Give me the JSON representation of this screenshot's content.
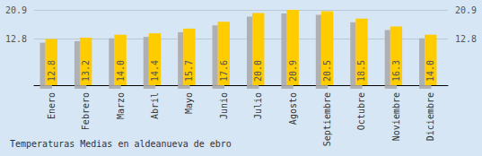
{
  "chart_data": {
    "type": "bar",
    "title": "Temperaturas Medias en aldeanueva de ebro",
    "categories": [
      "Enero",
      "Febrero",
      "Marzo",
      "Abril",
      "Mayo",
      "Junio",
      "Julio",
      "Agosto",
      "Septiembre",
      "Octubre",
      "Noviembre",
      "Diciembre"
    ],
    "values": [
      12.8,
      13.2,
      14.0,
      14.4,
      15.7,
      17.6,
      20.0,
      20.9,
      20.5,
      18.5,
      16.3,
      14.0
    ],
    "value_labels": [
      "12.8",
      "13.2",
      "14.0",
      "14.4",
      "15.7",
      "17.6",
      "20.0",
      "20.9",
      "20.5",
      "18.5",
      "16.3",
      "14.0"
    ],
    "color": "#ffcc00",
    "ylim": [
      0,
      20.9
    ],
    "yticks": [
      12.8,
      20.9
    ],
    "grid": true,
    "data_labels": true
  }
}
